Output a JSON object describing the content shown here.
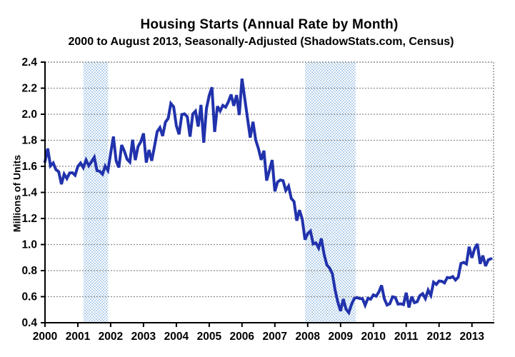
{
  "title": "Housing Starts (Annual Rate by Month)",
  "subtitle": "2000 to August 2013, Seasonally-Adjusted (ShadowStats.com, Census)",
  "chart_data": {
    "type": "line",
    "title": "Housing Starts (Annual Rate by Month)",
    "subtitle": "2000 to August 2013, Seasonally-Adjusted (ShadowStats.com, Census)",
    "ylabel": "Millions of Units",
    "xlabel": "",
    "ylim": [
      0.4,
      2.4
    ],
    "xlim": [
      2000,
      2013.66
    ],
    "yticks": [
      0.4,
      0.6,
      0.8,
      1.0,
      1.2,
      1.4,
      1.6,
      1.8,
      2.0,
      2.2,
      2.4
    ],
    "xticks": [
      2000,
      2001,
      2002,
      2003,
      2004,
      2005,
      2006,
      2007,
      2008,
      2009,
      2010,
      2011,
      2012,
      2013
    ],
    "grid": true,
    "legend": "none",
    "line_color": "#2132ac",
    "band_color": "#b6d2ec",
    "grid_color": "#8c8c8c",
    "axis_color": "#000000",
    "recession_bands": [
      {
        "label": "2001 recession",
        "start": 2001.17,
        "end": 2001.92
      },
      {
        "label": "2007-2009 recession",
        "start": 2007.92,
        "end": 2009.46
      }
    ],
    "series": [
      {
        "name": "Housing Starts (seasonally-adjusted annual rate, millions of units)",
        "start_month": "2000-01",
        "end_month": "2013-08",
        "frequency": "monthly",
        "monthly_values": [
          1.636,
          1.737,
          1.604,
          1.626,
          1.575,
          1.559,
          1.463,
          1.541,
          1.507,
          1.549,
          1.551,
          1.532,
          1.6,
          1.625,
          1.59,
          1.649,
          1.605,
          1.636,
          1.67,
          1.567,
          1.562,
          1.54,
          1.602,
          1.568,
          1.698,
          1.829,
          1.642,
          1.592,
          1.764,
          1.717,
          1.655,
          1.633,
          1.804,
          1.648,
          1.753,
          1.788,
          1.853,
          1.629,
          1.726,
          1.643,
          1.751,
          1.867,
          1.897,
          1.833,
          1.939,
          1.967,
          2.083,
          2.057,
          1.911,
          1.846,
          1.998,
          2.003,
          1.981,
          1.828,
          2.002,
          2.024,
          1.905,
          2.072,
          1.782,
          2.042,
          2.144,
          2.207,
          1.864,
          2.061,
          2.025,
          2.068,
          2.054,
          2.095,
          2.151,
          2.065,
          2.147,
          1.994,
          2.273,
          2.119,
          1.969,
          1.821,
          1.942,
          1.802,
          1.737,
          1.65,
          1.72,
          1.491,
          1.57,
          1.649,
          1.409,
          1.48,
          1.495,
          1.49,
          1.415,
          1.448,
          1.354,
          1.33,
          1.183,
          1.264,
          1.197,
          1.037,
          1.084,
          1.103,
          1.005,
          1.013,
          0.973,
          1.046,
          0.923,
          0.844,
          0.82,
          0.777,
          0.652,
          0.56,
          0.49,
          0.582,
          0.505,
          0.478,
          0.54,
          0.585,
          0.594,
          0.586,
          0.585,
          0.534,
          0.588,
          0.581,
          0.614,
          0.604,
          0.636,
          0.687,
          0.583,
          0.536,
          0.546,
          0.599,
          0.594,
          0.543,
          0.545,
          0.539,
          0.63,
          0.517,
          0.6,
          0.554,
          0.561,
          0.608,
          0.623,
          0.585,
          0.65,
          0.61,
          0.711,
          0.694,
          0.72,
          0.718,
          0.706,
          0.747,
          0.744,
          0.754,
          0.728,
          0.749,
          0.854,
          0.863,
          0.851,
          0.983,
          0.898,
          0.969,
          1.005,
          0.852,
          0.915,
          0.835,
          0.883,
          0.891
        ]
      }
    ]
  }
}
